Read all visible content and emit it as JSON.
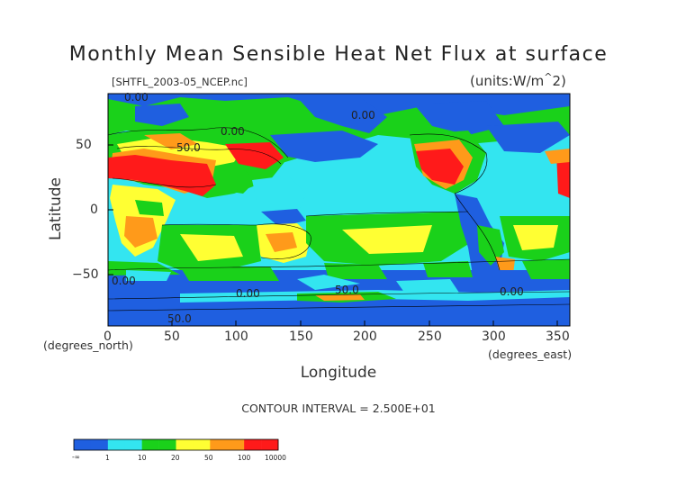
{
  "title": "Monthly Mean Sensible Heat Net Flux at surface",
  "dataset": "[SHTFL_2003-05_NCEP.nc]",
  "units": "(units:W/m^2)",
  "axes": {
    "ylabel": "Latitude",
    "xlabel": "Longitude",
    "yunit": "(degrees_north)",
    "xunit": "(degrees_east)",
    "xticks": [
      "0",
      "50",
      "100",
      "150",
      "200",
      "250",
      "300",
      "350"
    ],
    "yticks": [
      "50",
      "0",
      "−50"
    ]
  },
  "contour_interval": "CONTOUR INTERVAL = 2.500E+01",
  "contour_labels": [
    "0.00",
    "0.00",
    "50.0",
    "0.00",
    "0.00",
    "0.00",
    "50.0",
    "0.00",
    "50.0"
  ],
  "colorbar": {
    "colors": [
      "#1f5fe0",
      "#1f5fe0",
      "#33e5f0",
      "#33e5f0",
      "#1ad11a",
      "#1ad11a",
      "#ffff33",
      "#ffff33",
      "#ff9a1a",
      "#ff9a1a",
      "#ff1a1a",
      "#ff1a1a"
    ],
    "labels": [
      "-∞",
      "1",
      "10",
      "20",
      "50",
      "100",
      "10000"
    ]
  },
  "palette": {
    "blue": "#1f5fe0",
    "cyan": "#33e5f0",
    "green": "#1ad11a",
    "yellow": "#ffff33",
    "orange": "#ff9a1a",
    "red": "#ff1a1a"
  }
}
